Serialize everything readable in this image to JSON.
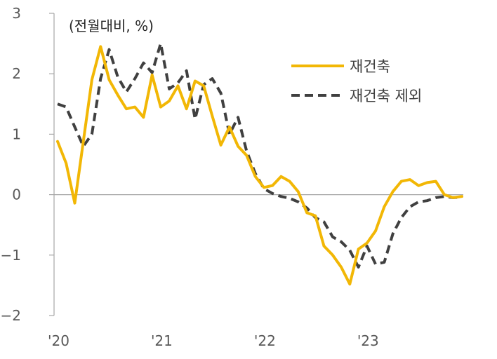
{
  "chart_data": {
    "type": "line",
    "unit_label": "(전월대비, %)",
    "ylim": [
      -2,
      3
    ],
    "yticks": [
      3,
      2,
      1,
      0,
      -1,
      -2
    ],
    "ytick_labels": [
      "3",
      "2",
      "1",
      "0",
      "−1",
      "−2"
    ],
    "xlim": [
      2020.0,
      2023.92
    ],
    "xticks": [
      {
        "x": 2020.0,
        "label": "'20"
      },
      {
        "x": 2021.0,
        "label": "'21"
      },
      {
        "x": 2022.0,
        "label": "'22"
      },
      {
        "x": 2023.0,
        "label": "'23"
      }
    ],
    "grid": false,
    "legend_position": "upper-right",
    "colors": {
      "series1": "#F2B705",
      "series2": "#404040",
      "axis": "#A6A6A6"
    },
    "series": [
      {
        "name": "재건축",
        "style": "solid",
        "x": [
          2020.0,
          2020.083,
          2020.167,
          2020.25,
          2020.333,
          2020.417,
          2020.5,
          2020.583,
          2020.667,
          2020.75,
          2020.833,
          2020.917,
          2021.0,
          2021.083,
          2021.167,
          2021.25,
          2021.333,
          2021.417,
          2021.5,
          2021.583,
          2021.667,
          2021.75,
          2021.833,
          2021.917,
          2022.0,
          2022.083,
          2022.167,
          2022.25,
          2022.333,
          2022.417,
          2022.5,
          2022.583,
          2022.667,
          2022.75,
          2022.833,
          2022.917,
          2023.0,
          2023.083,
          2023.167,
          2023.25,
          2023.333,
          2023.417,
          2023.5,
          2023.583,
          2023.667,
          2023.75,
          2023.833,
          2023.92
        ],
        "values": [
          0.88,
          0.52,
          -0.14,
          0.88,
          1.9,
          2.45,
          1.9,
          1.65,
          1.42,
          1.45,
          1.28,
          1.98,
          1.45,
          1.55,
          1.8,
          1.42,
          1.88,
          1.8,
          1.3,
          0.82,
          1.12,
          0.8,
          0.65,
          0.3,
          0.12,
          0.15,
          0.3,
          0.22,
          0.05,
          -0.3,
          -0.35,
          -0.85,
          -1.0,
          -1.2,
          -1.48,
          -0.9,
          -0.8,
          -0.6,
          -0.2,
          0.05,
          0.22,
          0.25,
          0.15,
          0.2,
          0.22,
          0.0,
          -0.05,
          -0.03
        ]
      },
      {
        "name": "재건축 제외",
        "style": "dashed",
        "x": [
          2020.0,
          2020.083,
          2020.167,
          2020.25,
          2020.333,
          2020.417,
          2020.5,
          2020.583,
          2020.667,
          2020.75,
          2020.833,
          2020.917,
          2021.0,
          2021.083,
          2021.167,
          2021.25,
          2021.333,
          2021.417,
          2021.5,
          2021.583,
          2021.667,
          2021.75,
          2021.833,
          2021.917,
          2022.0,
          2022.083,
          2022.167,
          2022.25,
          2022.333,
          2022.417,
          2022.5,
          2022.583,
          2022.667,
          2022.75,
          2022.833,
          2022.917,
          2023.0,
          2023.083,
          2023.167,
          2023.25,
          2023.333,
          2023.417,
          2023.5,
          2023.583,
          2023.667,
          2023.75,
          2023.833,
          2023.92
        ],
        "values": [
          1.5,
          1.45,
          1.12,
          0.8,
          1.0,
          1.92,
          2.4,
          1.95,
          1.7,
          1.92,
          2.18,
          2.02,
          2.5,
          1.75,
          1.85,
          2.05,
          1.25,
          1.82,
          1.92,
          1.68,
          1.0,
          1.28,
          0.72,
          0.35,
          0.1,
          0.02,
          -0.03,
          -0.06,
          -0.12,
          -0.22,
          -0.38,
          -0.45,
          -0.7,
          -0.78,
          -0.92,
          -1.2,
          -0.85,
          -1.15,
          -1.12,
          -0.65,
          -0.38,
          -0.2,
          -0.12,
          -0.1,
          -0.05,
          -0.03,
          -0.05,
          -0.04
        ]
      }
    ]
  }
}
